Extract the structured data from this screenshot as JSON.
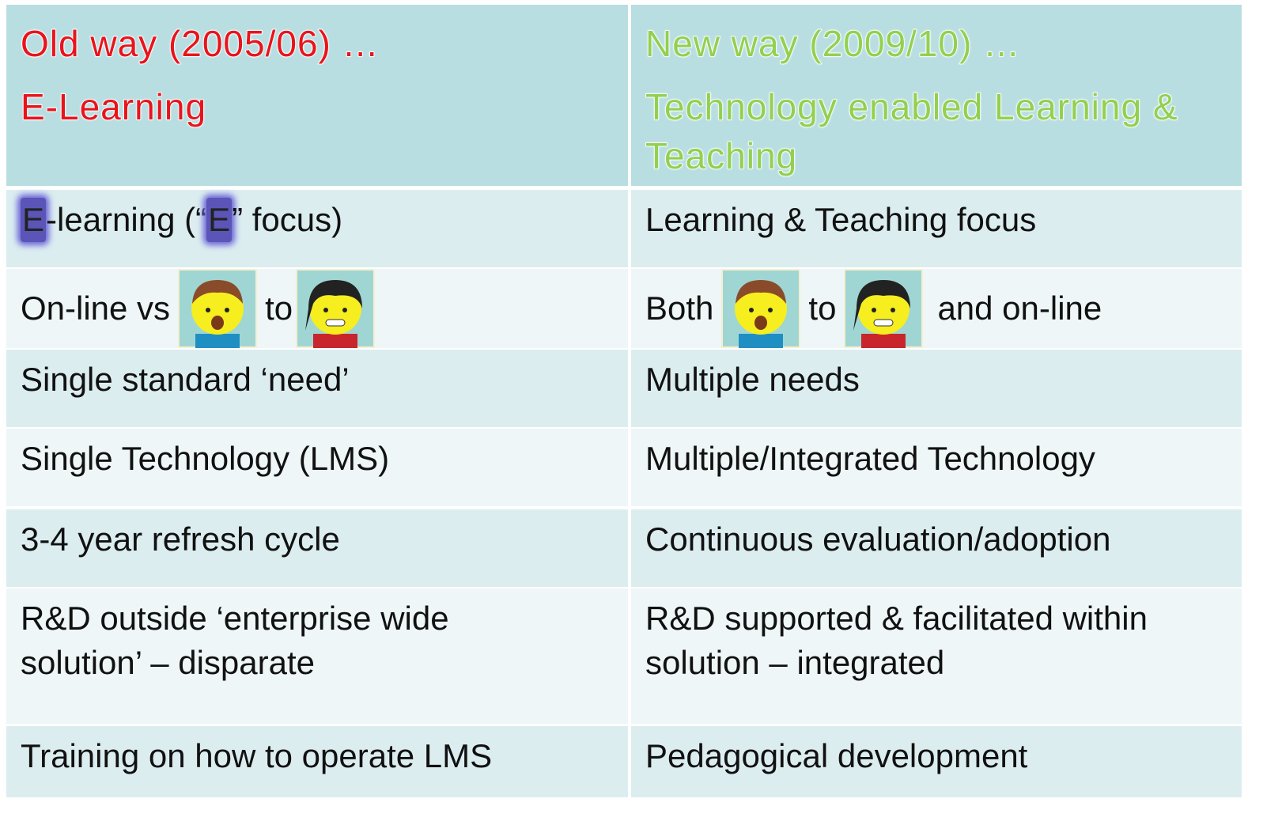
{
  "header": {
    "old": {
      "title": "Old way (2005/06) …",
      "subtitle": "E-Learning"
    },
    "new": {
      "title": "New way (2009/10) …",
      "subtitle": "Technology enabled Learning & Teaching"
    }
  },
  "table": {
    "rows": [
      [
        [
          "E",
          "-learning (“",
          "E",
          "” focus)"
        ],
        "Learning & Teaching focus"
      ],
      [
        [
          "On-line vs",
          "to"
        ],
        [
          "Both",
          "to",
          "and on-line"
        ]
      ],
      [
        "Single standard ‘need’",
        "Multiple needs"
      ],
      [
        "Single Technology (LMS)",
        "Multiple/Integrated Technology"
      ],
      [
        "3-4 year refresh cycle",
        "Continuous evaluation/adoption"
      ],
      [
        "R&D outside ‘enterprise wide solution’ – disparate",
        "R&D supported & facilitated within solution – integrated"
      ],
      [
        "Training on how to operate LMS",
        "Pedagogical development"
      ]
    ]
  }
}
